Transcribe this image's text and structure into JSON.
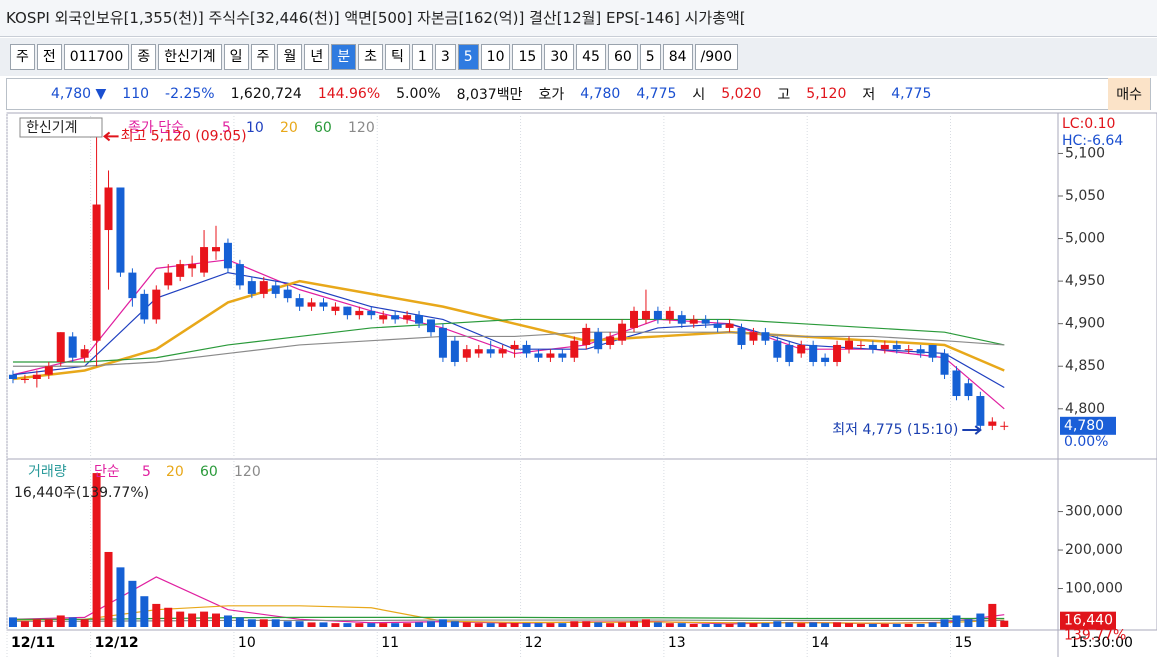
{
  "header": {
    "title": "KOSPI 외국인보유[1,355(천)] 주식수[32,446(천)] 액면[500] 자본금[162(억)] 결산[12월] EPS[-146] 시가총액["
  },
  "toolbar": {
    "items": [
      "주",
      "전",
      "011700",
      "종",
      "한신기계",
      "일",
      "주",
      "월",
      "년",
      "분",
      "초",
      "틱",
      "1",
      "3",
      "5",
      "10",
      "15",
      "30",
      "45",
      "60",
      "5",
      "84",
      "/900"
    ],
    "selected": [
      9,
      14
    ]
  },
  "info": {
    "items": [
      {
        "text": "4,780 ▼",
        "color": "#1a4fd0"
      },
      {
        "text": "110",
        "color": "#1a4fd0"
      },
      {
        "text": "-2.25%",
        "color": "#1a4fd0"
      },
      {
        "text": "1,620,724",
        "color": "#111111"
      },
      {
        "text": "144.96%",
        "color": "#e0141b"
      },
      {
        "text": "5.00%",
        "color": "#111111"
      },
      {
        "text": "8,037백만",
        "color": "#111111"
      },
      {
        "text": "호가",
        "color": "#111111"
      },
      {
        "text": "4,780",
        "color": "#1a4fd0"
      },
      {
        "text": "4,775",
        "color": "#1a4fd0"
      },
      {
        "text": "시",
        "color": "#111111"
      },
      {
        "text": "5,020",
        "color": "#e0141b"
      },
      {
        "text": "고",
        "color": "#111111"
      },
      {
        "text": "5,120",
        "color": "#e0141b"
      },
      {
        "text": "저",
        "color": "#111111"
      },
      {
        "text": "4,775",
        "color": "#1a4fd0"
      },
      {
        "text": "매수",
        "color": "#111111"
      }
    ]
  },
  "chart_data": {
    "type": "candlestick",
    "stock_name": "한신기계",
    "ma_label": "종가 단순",
    "up_color": "#e8141b",
    "down_color": "#1560d4",
    "xlim": [
      -0.5,
      87.5
    ],
    "xticks": [
      {
        "value": 0,
        "label": "12/11"
      },
      {
        "value": 7,
        "label": "12/12"
      },
      {
        "value": 19,
        "label": "10"
      },
      {
        "value": 31,
        "label": "11"
      },
      {
        "value": 43,
        "label": "12"
      },
      {
        "value": 55,
        "label": "13"
      },
      {
        "value": 67,
        "label": "14"
      },
      {
        "value": 79,
        "label": "15"
      }
    ],
    "time_label": "15:30:00",
    "ylim": [
      4741,
      5144
    ],
    "yticks": [
      {
        "value": 4800,
        "label": "4,800"
      },
      {
        "value": 4850,
        "label": "4,850"
      },
      {
        "value": 4900,
        "label": "4,900"
      },
      {
        "value": 4950,
        "label": "4,950"
      },
      {
        "value": 5000,
        "label": "5,000"
      },
      {
        "value": 5050,
        "label": "5,050"
      },
      {
        "value": 5100,
        "label": "5,100"
      }
    ],
    "open": [
      4840,
      4835,
      4835,
      4840,
      4855,
      4885,
      4860,
      4880,
      5010,
      5060,
      4960,
      4935,
      4905,
      4945,
      4955,
      4965,
      4960,
      4985,
      4995,
      4970,
      4950,
      4935,
      4945,
      4940,
      4930,
      4920,
      4925,
      4915,
      4920,
      4910,
      4915,
      4905,
      4910,
      4905,
      4910,
      4905,
      4895,
      4880,
      4860,
      4865,
      4870,
      4865,
      4870,
      4875,
      4865,
      4860,
      4865,
      4860,
      4875,
      4890,
      4875,
      4880,
      4895,
      4905,
      4915,
      4905,
      4910,
      4900,
      4905,
      4900,
      4895,
      4895,
      4880,
      4890,
      4880,
      4875,
      4865,
      4875,
      4860,
      4855,
      4870,
      4875,
      4875,
      4870,
      4875,
      4870,
      4870,
      4875,
      4865,
      4845,
      4830,
      4815,
      4780,
      4780
    ],
    "high": [
      4845,
      4840,
      4845,
      4855,
      4890,
      4890,
      4875,
      5120,
      5080,
      5060,
      4965,
      4940,
      4945,
      4970,
      4975,
      4980,
      5010,
      5015,
      5000,
      4975,
      4955,
      4955,
      4950,
      4945,
      4935,
      4930,
      4930,
      4925,
      4920,
      4920,
      4920,
      4915,
      4915,
      4915,
      4915,
      4905,
      4900,
      4885,
      4875,
      4875,
      4880,
      4875,
      4880,
      4880,
      4870,
      4870,
      4870,
      4885,
      4900,
      4895,
      4890,
      4905,
      4920,
      4940,
      4920,
      4920,
      4915,
      4910,
      4910,
      4905,
      4905,
      4900,
      4895,
      4895,
      4885,
      4880,
      4880,
      4880,
      4865,
      4880,
      4885,
      4880,
      4880,
      4880,
      4880,
      4875,
      4875,
      4875,
      4870,
      4850,
      4835,
      4820,
      4790,
      4785
    ],
    "low": [
      4830,
      4830,
      4825,
      4835,
      4850,
      4855,
      4855,
      4850,
      4940,
      4955,
      4920,
      4900,
      4900,
      4940,
      4950,
      4955,
      4955,
      4975,
      4960,
      4940,
      4930,
      4930,
      4930,
      4925,
      4915,
      4915,
      4915,
      4910,
      4905,
      4905,
      4905,
      4900,
      4900,
      4900,
      4895,
      4885,
      4855,
      4850,
      4855,
      4860,
      4860,
      4860,
      4860,
      4860,
      4855,
      4855,
      4855,
      4855,
      4870,
      4865,
      4870,
      4875,
      4890,
      4900,
      4900,
      4900,
      4895,
      4895,
      4895,
      4890,
      4890,
      4870,
      4875,
      4875,
      4855,
      4850,
      4860,
      4850,
      4850,
      4850,
      4865,
      4870,
      4865,
      4865,
      4865,
      4865,
      4860,
      4855,
      4835,
      4810,
      4810,
      4775,
      4775,
      4775
    ],
    "close": [
      4835,
      4835,
      4840,
      4850,
      4890,
      4860,
      4870,
      5040,
      5060,
      4960,
      4930,
      4905,
      4940,
      4960,
      4970,
      4970,
      4990,
      4990,
      4965,
      4945,
      4935,
      4950,
      4935,
      4930,
      4920,
      4925,
      4920,
      4920,
      4910,
      4915,
      4910,
      4910,
      4905,
      4910,
      4900,
      4890,
      4860,
      4855,
      4870,
      4870,
      4865,
      4870,
      4875,
      4865,
      4860,
      4865,
      4860,
      4880,
      4895,
      4870,
      4885,
      4900,
      4915,
      4915,
      4905,
      4915,
      4900,
      4905,
      4900,
      4895,
      4900,
      4875,
      4890,
      4880,
      4860,
      4855,
      4875,
      4855,
      4855,
      4875,
      4880,
      4875,
      4870,
      4875,
      4870,
      4870,
      4865,
      4860,
      4840,
      4815,
      4815,
      4780,
      4785,
      4780
    ],
    "ma_series": [
      {
        "name": "5",
        "color": "#e020a0",
        "x": [
          0,
          6,
          12,
          18,
          24,
          30,
          36,
          42,
          48,
          54,
          60,
          66,
          72,
          78,
          83
        ],
        "values": [
          4840,
          4860,
          4965,
          4975,
          4940,
          4915,
          4895,
          4865,
          4875,
          4905,
          4900,
          4870,
          4870,
          4860,
          4800
        ]
      },
      {
        "name": "10",
        "color": "#2040c0",
        "x": [
          0,
          6,
          12,
          18,
          24,
          30,
          36,
          42,
          48,
          54,
          60,
          66,
          72,
          78,
          83
        ],
        "values": [
          4840,
          4850,
          4930,
          4960,
          4945,
          4920,
          4905,
          4870,
          4870,
          4895,
          4900,
          4875,
          4870,
          4865,
          4825
        ]
      },
      {
        "name": "20",
        "color": "#e8a81a",
        "x": [
          0,
          6,
          12,
          18,
          24,
          30,
          36,
          42,
          48,
          54,
          60,
          66,
          72,
          78,
          83
        ],
        "values": [
          4835,
          4845,
          4870,
          4925,
          4950,
          4935,
          4920,
          4900,
          4880,
          4885,
          4890,
          4885,
          4880,
          4875,
          4845
        ]
      },
      {
        "name": "60",
        "color": "#2a9a3a",
        "x": [
          0,
          6,
          12,
          18,
          24,
          30,
          36,
          42,
          48,
          54,
          60,
          66,
          72,
          78,
          83
        ],
        "values": [
          4855,
          4855,
          4860,
          4875,
          4885,
          4895,
          4900,
          4905,
          4905,
          4905,
          4905,
          4900,
          4895,
          4890,
          4875
        ]
      },
      {
        "name": "120",
        "color": "#8a8a8a",
        "x": [
          0,
          6,
          12,
          18,
          24,
          30,
          36,
          42,
          48,
          54,
          60,
          66,
          72,
          78,
          83
        ],
        "values": [
          4850,
          4850,
          4855,
          4865,
          4875,
          4880,
          4885,
          4885,
          4890,
          4890,
          4890,
          4885,
          4885,
          4880,
          4875
        ]
      }
    ],
    "high_note": "최고 5,120 (09:05)",
    "high_value": 5120,
    "high_index": 7,
    "low_note": "최저 4,775 (15:10)",
    "low_value": 4775,
    "low_index": 82,
    "lc": "LC:0.10",
    "hc": "HC:-6.64",
    "last_price": 4780,
    "last_price_label": "4,780",
    "last_change": "0.00%",
    "volume_title": "거래량",
    "volume_ma_label": "단순",
    "volume_note": "16,440주(139.77%)",
    "volume": [
      25000,
      15000,
      20000,
      20000,
      30000,
      25000,
      20000,
      400000,
      195000,
      155000,
      120000,
      80000,
      60000,
      50000,
      40000,
      35000,
      40000,
      35000,
      30000,
      25000,
      20000,
      20000,
      20000,
      15000,
      15000,
      12000,
      12000,
      10000,
      10000,
      10000,
      10000,
      10000,
      10000,
      10000,
      12000,
      15000,
      20000,
      15000,
      12000,
      10000,
      10000,
      10000,
      10000,
      10000,
      10000,
      10000,
      10000,
      15000,
      15000,
      12000,
      10000,
      12000,
      15000,
      20000,
      12000,
      10000,
      10000,
      8000,
      8000,
      8000,
      8000,
      12000,
      10000,
      10000,
      15000,
      12000,
      10000,
      12000,
      10000,
      12000,
      10000,
      8000,
      8000,
      8000,
      8000,
      8000,
      8000,
      12000,
      20000,
      30000,
      20000,
      35000,
      60000,
      16440
    ],
    "vlim": [
      0,
      434000
    ],
    "vticks": [
      {
        "value": 100000,
        "label": "100,000"
      },
      {
        "value": 200000,
        "label": "200,000"
      },
      {
        "value": 300000,
        "label": "300,000"
      }
    ],
    "last_volume": 16440,
    "last_volume_label": "16,440",
    "last_volume_ratio": "139.77%",
    "volume_ma_series": [
      {
        "name": "5",
        "color": "#e020a0",
        "x": [
          0,
          6,
          12,
          18,
          24,
          30,
          36,
          42,
          48,
          54,
          60,
          66,
          72,
          78,
          83
        ],
        "values": [
          20000,
          25000,
          130000,
          45000,
          20000,
          11000,
          14000,
          10000,
          13000,
          14000,
          8000,
          12000,
          9000,
          12000,
          32000
        ]
      },
      {
        "name": "20",
        "color": "#e8a81a",
        "x": [
          0,
          6,
          12,
          18,
          24,
          30,
          36,
          42,
          48,
          54,
          60,
          66,
          72,
          78,
          83
        ],
        "values": [
          18000,
          20000,
          45000,
          55000,
          55000,
          50000,
          15000,
          12000,
          12000,
          13000,
          11000,
          11000,
          10000,
          11000,
          18000
        ]
      },
      {
        "name": "60",
        "color": "#2a9a3a",
        "x": [
          0,
          6,
          12,
          18,
          24,
          30,
          36,
          42,
          48,
          54,
          60,
          66,
          72,
          78,
          83
        ],
        "values": [
          20000,
          20000,
          22000,
          24000,
          25000,
          25000,
          25000,
          25000,
          24000,
          24000,
          23000,
          22000,
          22000,
          22000,
          22000
        ]
      },
      {
        "name": "120",
        "color": "#8a8a8a",
        "x": [
          0,
          6,
          12,
          18,
          24,
          30,
          36,
          42,
          48,
          54,
          60,
          66,
          72,
          78,
          83
        ],
        "values": [
          15000,
          15000,
          16000,
          17000,
          17000,
          17000,
          18000,
          18000,
          18000,
          18000,
          17000,
          17000,
          17000,
          17000,
          17000
        ]
      }
    ]
  }
}
